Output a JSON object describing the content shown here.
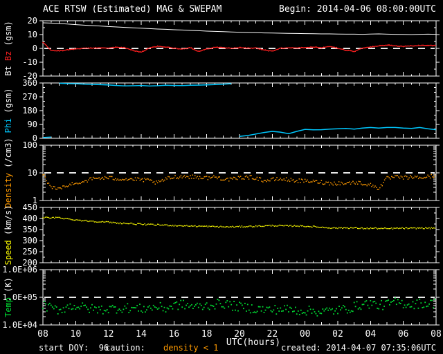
{
  "header": {
    "title": "ACE RTSW (Estimated) MAG & SWEPAM",
    "begin": "Begin: 2014-04-06 08:00:00UTC"
  },
  "footer": {
    "start_doy": "start DOY:  96",
    "caution_label": "caution:",
    "caution_value": "density < 1",
    "caution_color": "#ff9a00",
    "created": "created: 2014-04-07 07:35:06UTC"
  },
  "colors": {
    "background": "#000000",
    "frame": "#ffffff",
    "dashed_line": "#e8e8e8",
    "bt": "#ffffff",
    "bz": "#ff2020",
    "phi": "#00c8ff",
    "density": "#ff9a00",
    "speed": "#ffff00",
    "temp": "#00dd33"
  },
  "x_axis": {
    "label": "UTC(hours)",
    "range": [
      8,
      32
    ],
    "major_step": 2,
    "minor_step": 0.5,
    "tick_labels": [
      "08",
      "10",
      "12",
      "14",
      "16",
      "18",
      "20",
      "22",
      "00",
      "02",
      "04",
      "06",
      "08"
    ]
  },
  "chart_data": [
    {
      "id": "bt-bz",
      "type": "line",
      "scale": "linear",
      "ylim": [
        -20,
        20
      ],
      "yticks": [
        -20,
        -10,
        0,
        10,
        20
      ],
      "ytick_labels": [
        "-20",
        "-10",
        "0",
        "10",
        "20"
      ],
      "yminor": 5,
      "dashed_at": 0,
      "ylabel_parts": [
        {
          "text": "Bt ",
          "color": "#ffffff"
        },
        {
          "text": "Bz",
          "color": "#ff2020"
        },
        {
          "text": " (gsm)",
          "color": "#ffffff"
        }
      ],
      "x": [
        8,
        8.5,
        9,
        9.5,
        10,
        10.5,
        11,
        11.5,
        12,
        12.5,
        13,
        13.5,
        14,
        14.5,
        15,
        15.5,
        16,
        16.5,
        17,
        17.5,
        18,
        18.5,
        19,
        19.5,
        20,
        20.5,
        21,
        21.5,
        22,
        22.5,
        23,
        23.5,
        24,
        24.5,
        25,
        25.5,
        26,
        26.5,
        27,
        27.5,
        28,
        28.5,
        29,
        29.5,
        30,
        30.5,
        31,
        31.5,
        32
      ],
      "series": [
        {
          "name": "Bt",
          "color": "#ffffff",
          "style": "line",
          "width": 1,
          "values": [
            18.5,
            18.3,
            18,
            17.6,
            17.2,
            16.8,
            16.5,
            16.2,
            15.8,
            15.5,
            15.2,
            14.9,
            14.6,
            14.3,
            14,
            13.8,
            13.5,
            13.3,
            13,
            12.8,
            12.5,
            12.3,
            12.1,
            11.9,
            11.7,
            11.5,
            11.4,
            11.2,
            11.1,
            11,
            10.9,
            10.8,
            10.7,
            10.6,
            10.5,
            10.5,
            10.4,
            10.3,
            10.3,
            10.2,
            10.4,
            10.5,
            10.3,
            10.2,
            10.1,
            10,
            10.2,
            10.3,
            10.2
          ]
        },
        {
          "name": "Bz",
          "color": "#ff2020",
          "style": "scatterline",
          "width": 1,
          "dot": 1.4,
          "jitter": 0.35,
          "subsample": 7,
          "values": [
            4.5,
            -1.5,
            -1.8,
            -1,
            -0.5,
            0.3,
            0.2,
            0.5,
            0.3,
            0.8,
            0.5,
            -1.5,
            -2.8,
            0.3,
            1.5,
            1,
            0.2,
            -0.5,
            0.5,
            -2.2,
            -0.3,
            0.8,
            0.5,
            0.2,
            0.5,
            0.1,
            0.4,
            -1.2,
            -2,
            0.1,
            0.5,
            0.4,
            0.6,
            1,
            0.5,
            1.4,
            0.2,
            -1.4,
            -2.2,
            0.3,
            1,
            1.8,
            2.4,
            1.8,
            1.5,
            1.8,
            2,
            2.3,
            2
          ]
        }
      ]
    },
    {
      "id": "phi",
      "type": "line",
      "scale": "linear",
      "ylim": [
        0,
        360
      ],
      "yticks": [
        0,
        90,
        180,
        270,
        360
      ],
      "ytick_labels": [
        "0",
        "90",
        "180",
        "270",
        "360"
      ],
      "yminor": 30,
      "dashed_at": null,
      "ylabel_parts": [
        {
          "text": "Phi",
          "color": "#00c8ff"
        },
        {
          "text": " (gsm)",
          "color": "#ffffff"
        }
      ],
      "x": [
        8,
        8.5,
        9,
        9.5,
        10,
        10.5,
        11,
        11.5,
        12,
        12.5,
        13,
        13.5,
        14,
        14.5,
        15,
        15.5,
        16,
        16.5,
        17,
        17.5,
        18,
        18.5,
        19,
        19.5,
        20,
        20.5,
        21,
        21.5,
        22,
        22.5,
        23,
        23.5,
        24,
        24.5,
        25,
        25.5,
        26,
        26.5,
        27,
        27.5,
        28,
        28.5,
        29,
        29.5,
        30,
        30.5,
        31,
        31.5,
        32
      ],
      "series": [
        {
          "name": "Phi",
          "color": "#00c8ff",
          "style": "line",
          "width": 1.5,
          "wrap_break": 150,
          "values": [
            5,
            8,
            358,
            356,
            355,
            353,
            351,
            349,
            347,
            344,
            341,
            342,
            344,
            340,
            342,
            345,
            344,
            343,
            345,
            346,
            348,
            350,
            352,
            355,
            12,
            18,
            28,
            38,
            45,
            40,
            30,
            45,
            58,
            55,
            56,
            60,
            62,
            64,
            60,
            66,
            70,
            66,
            70,
            70,
            66,
            64,
            70,
            62,
            56
          ]
        }
      ]
    },
    {
      "id": "density",
      "type": "scatter",
      "scale": "log",
      "ylim": [
        1,
        100
      ],
      "yticks": [
        1,
        10,
        100
      ],
      "ytick_labels": [
        "1",
        "10",
        "100"
      ],
      "yminor": "log",
      "dashed_at": 10,
      "ylabel_parts": [
        {
          "text": "Density",
          "color": "#ff9a00"
        },
        {
          "text": " (/cm3)",
          "color": "#ffffff"
        }
      ],
      "x": [
        8,
        8.5,
        9,
        9.5,
        10,
        10.5,
        11,
        11.5,
        12,
        12.5,
        13,
        13.5,
        14,
        14.5,
        15,
        15.5,
        16,
        16.5,
        17,
        17.5,
        18,
        18.5,
        19,
        19.5,
        20,
        20.5,
        21,
        21.5,
        22,
        22.5,
        23,
        23.5,
        24,
        24.5,
        25,
        25.5,
        26,
        26.5,
        27,
        27.5,
        28,
        28.5,
        29,
        29.5,
        30,
        30.5,
        31,
        31.5,
        32
      ],
      "series": [
        {
          "name": "Density",
          "color": "#ff9a00",
          "style": "scatter",
          "dot": 1.5,
          "jitter": 0.07,
          "subsample": 7,
          "values": [
            9,
            3,
            2.6,
            3.5,
            4.2,
            5,
            6,
            6.5,
            6.5,
            6.2,
            6,
            5.8,
            5.6,
            5.2,
            4.2,
            6,
            7,
            7.4,
            7.2,
            7,
            6.6,
            7,
            6.2,
            5.6,
            6.6,
            7,
            6.6,
            5.2,
            5.6,
            6,
            5.6,
            5.2,
            5,
            4.8,
            4.6,
            4.2,
            4.2,
            4.2,
            4.5,
            4.2,
            3.6,
            2.8,
            6.2,
            7,
            6.6,
            7,
            6.6,
            7.2,
            8
          ]
        }
      ]
    },
    {
      "id": "speed",
      "type": "scatter",
      "scale": "linear",
      "ylim": [
        200,
        450
      ],
      "yticks": [
        200,
        250,
        300,
        350,
        400,
        450
      ],
      "ytick_labels": [
        "200",
        "250",
        "300",
        "350",
        "400",
        "450"
      ],
      "yminor": 25,
      "dashed_at": null,
      "ylabel_parts": [
        {
          "text": "Speed",
          "color": "#ffff00"
        },
        {
          "text": " (km/s)",
          "color": "#ffffff"
        }
      ],
      "x": [
        8,
        8.5,
        9,
        9.5,
        10,
        10.5,
        11,
        11.5,
        12,
        12.5,
        13,
        13.5,
        14,
        14.5,
        15,
        15.5,
        16,
        16.5,
        17,
        17.5,
        18,
        18.5,
        19,
        19.5,
        20,
        20.5,
        21,
        21.5,
        22,
        22.5,
        23,
        23.5,
        24,
        24.5,
        25,
        25.5,
        26,
        26.5,
        27,
        27.5,
        28,
        28.5,
        29,
        29.5,
        30,
        30.5,
        31,
        31.5,
        32
      ],
      "series": [
        {
          "name": "Speed",
          "color": "#ffff00",
          "style": "scatter",
          "dot": 1.4,
          "jitter": 3,
          "subsample": 7,
          "values": [
            405,
            402,
            404,
            398,
            394,
            390,
            388,
            385,
            383,
            380,
            378,
            376,
            374,
            372,
            371,
            370,
            368,
            367,
            366,
            365,
            364,
            363,
            362,
            362,
            363,
            364,
            365,
            366,
            368,
            367,
            366,
            367,
            365,
            363,
            360,
            358,
            357,
            358,
            357,
            355,
            356,
            355,
            354,
            355,
            356,
            355,
            357,
            356,
            357
          ]
        }
      ]
    },
    {
      "id": "temp",
      "type": "scatter",
      "scale": "log",
      "ylim": [
        10000,
        1000000
      ],
      "yticks": [
        10000,
        100000,
        1000000
      ],
      "ytick_labels": [
        "1.0E+04",
        "1.0E+05",
        "1.0E+06"
      ],
      "yminor": "log",
      "dashed_at": 100000,
      "ylabel_parts": [
        {
          "text": "Temp",
          "color": "#00dd33"
        },
        {
          "text": " (K)",
          "color": "#ffffff"
        }
      ],
      "x": [
        8,
        8.5,
        9,
        9.5,
        10,
        10.5,
        11,
        11.5,
        12,
        12.5,
        13,
        13.5,
        14,
        14.5,
        15,
        15.5,
        16,
        16.5,
        17,
        17.5,
        18,
        18.5,
        19,
        19.5,
        20,
        20.5,
        21,
        21.5,
        22,
        22.5,
        23,
        23.5,
        24,
        24.5,
        25,
        25.5,
        26,
        26.5,
        27,
        27.5,
        28,
        28.5,
        29,
        29.5,
        30,
        30.5,
        31,
        31.5,
        32
      ],
      "series": [
        {
          "name": "Temp",
          "color": "#00dd33",
          "style": "scatter",
          "dot": 1.8,
          "jitter": 0.17,
          "subsample": 6,
          "values": [
            52000,
            40000,
            35000,
            45000,
            50000,
            42000,
            38000,
            36000,
            38000,
            40000,
            42000,
            40000,
            38000,
            42000,
            45000,
            40000,
            50000,
            55000,
            48000,
            45000,
            50000,
            55000,
            60000,
            50000,
            45000,
            42000,
            38000,
            36000,
            35000,
            38000,
            36000,
            34000,
            33000,
            32000,
            30000,
            32000,
            34000,
            38000,
            45000,
            55000,
            60000,
            50000,
            55000,
            65000,
            60000,
            55000,
            60000,
            58000,
            62000
          ]
        }
      ]
    }
  ]
}
